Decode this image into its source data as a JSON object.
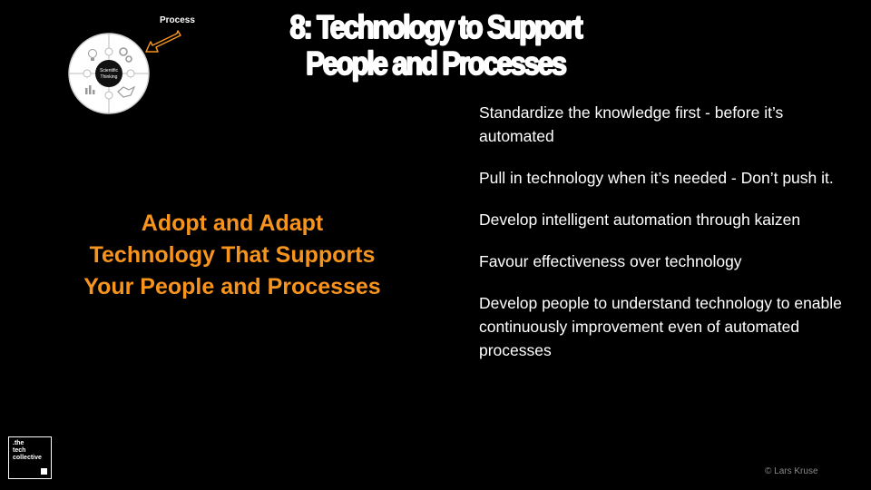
{
  "title": {
    "line1": "8: Technology to Support",
    "line2": "People and Processes"
  },
  "wheel": {
    "label": "Process",
    "center_line1": "Scientific",
    "center_line2": "Thinking"
  },
  "headline": {
    "line1": "Adopt and Adapt",
    "line2": "Technology That Supports",
    "line3": "Your People and Processes"
  },
  "bullets": [
    "Standardize the knowledge first - before it’s automated",
    "Pull in technology when it’s needed - Don’t push it.",
    "Develop intelligent automation through kaizen",
    "Favour effectiveness over technology",
    "Develop people to understand technology to enable continuously improvement even of automated processes"
  ],
  "logo": {
    "text": ".the\ntech\ncollective"
  },
  "copyright": "© Lars Kruse",
  "colors": {
    "background": "#000000",
    "accent": "#f7941d",
    "text": "#ffffff"
  }
}
